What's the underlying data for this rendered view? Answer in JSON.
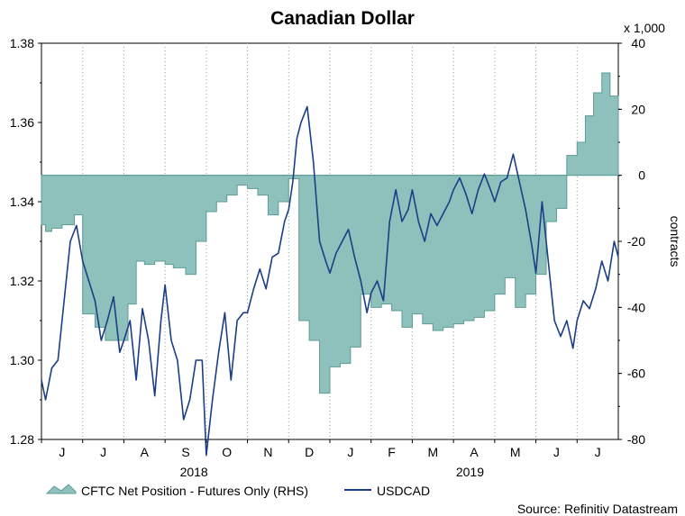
{
  "chart_data": {
    "type": "line",
    "title": "Canadian Dollar",
    "x_months": [
      "J",
      "J",
      "A",
      "S",
      "O",
      "N",
      "D",
      "J",
      "F",
      "M",
      "A",
      "M",
      "J",
      "J"
    ],
    "x_years": [
      "2018",
      "2019"
    ],
    "left_axis": {
      "ylim": [
        1.28,
        1.38
      ],
      "ticks": [
        "1.28",
        "1.30",
        "1.32",
        "1.34",
        "1.36",
        "1.38"
      ]
    },
    "right_axis": {
      "ylim": [
        -80,
        40
      ],
      "ticks": [
        "-80",
        "-60",
        "-40",
        "-20",
        "0",
        "20",
        "40"
      ],
      "unit_label": "x 1,000",
      "ylabel": "contracts"
    },
    "series": [
      {
        "name": "CFTC Net Position - Futures Only (RHS)",
        "type": "area",
        "axis": "right",
        "color": "#8fc1bc",
        "edge": "#5d9b95",
        "x": [
          0,
          0.1,
          0.25,
          0.5,
          0.8,
          1.0,
          1.3,
          1.55,
          1.75,
          2.1,
          2.3,
          2.5,
          2.75,
          3.0,
          3.2,
          3.5,
          3.75,
          4.0,
          4.25,
          4.5,
          4.75,
          5.0,
          5.25,
          5.5,
          5.75,
          6.0,
          6.25,
          6.5,
          6.75,
          7.0,
          7.25,
          7.5,
          7.75,
          8.0,
          8.25,
          8.5,
          8.75,
          9.0,
          9.25,
          9.5,
          9.75,
          10.0,
          10.25,
          10.5,
          10.75,
          11.0,
          11.25,
          11.5,
          11.75,
          12.0,
          12.25,
          12.5,
          12.75,
          13.0,
          13.2,
          13.4,
          13.6,
          13.8,
          14.0
        ],
        "values": [
          -15,
          -17,
          -16,
          -15,
          -12,
          -42,
          -46,
          -50,
          -50,
          -39,
          -26,
          -27,
          -26,
          -27,
          -28,
          -30,
          -20,
          -11,
          -8,
          -6,
          -3,
          -4,
          -6,
          -12,
          -8,
          -1,
          -44,
          -50,
          -66,
          -58,
          -57,
          -52,
          -36,
          -40,
          -39,
          -41,
          -46,
          -42,
          -45,
          -47,
          -46,
          -45,
          -44,
          -43,
          -41,
          -36,
          -31,
          -40,
          -36,
          -30,
          -14,
          -10,
          6,
          10,
          18,
          25,
          31,
          24,
          24
        ]
      },
      {
        "name": "USDCAD",
        "type": "line",
        "axis": "left",
        "color": "#1b3e87",
        "x": [
          0,
          0.1,
          0.25,
          0.4,
          0.55,
          0.7,
          0.85,
          1.0,
          1.15,
          1.3,
          1.45,
          1.6,
          1.75,
          1.9,
          2.0,
          2.15,
          2.3,
          2.45,
          2.6,
          2.75,
          2.9,
          3.0,
          3.15,
          3.3,
          3.45,
          3.6,
          3.75,
          3.9,
          4.0,
          4.15,
          4.3,
          4.45,
          4.6,
          4.75,
          4.9,
          5.0,
          5.15,
          5.3,
          5.45,
          5.6,
          5.75,
          5.9,
          6.0,
          6.1,
          6.2,
          6.3,
          6.45,
          6.6,
          6.75,
          6.9,
          7.0,
          7.15,
          7.3,
          7.45,
          7.6,
          7.75,
          7.9,
          8.0,
          8.15,
          8.3,
          8.45,
          8.6,
          8.75,
          8.9,
          9.0,
          9.15,
          9.3,
          9.45,
          9.6,
          9.75,
          9.9,
          10.0,
          10.15,
          10.3,
          10.45,
          10.6,
          10.75,
          10.9,
          11.0,
          11.15,
          11.3,
          11.45,
          11.6,
          11.75,
          11.9,
          12.0,
          12.15,
          12.3,
          12.45,
          12.6,
          12.75,
          12.9,
          13.0,
          13.15,
          13.3,
          13.45,
          13.6,
          13.75,
          13.9,
          14.0
        ],
        "values": [
          1.295,
          1.29,
          1.298,
          1.3,
          1.315,
          1.33,
          1.334,
          1.325,
          1.32,
          1.315,
          1.305,
          1.31,
          1.316,
          1.302,
          1.305,
          1.31,
          1.295,
          1.313,
          1.305,
          1.291,
          1.31,
          1.319,
          1.305,
          1.3,
          1.285,
          1.29,
          1.3,
          1.3,
          1.276,
          1.29,
          1.302,
          1.312,
          1.295,
          1.31,
          1.312,
          1.312,
          1.318,
          1.323,
          1.318,
          1.326,
          1.327,
          1.335,
          1.338,
          1.345,
          1.356,
          1.36,
          1.364,
          1.35,
          1.33,
          1.325,
          1.322,
          1.327,
          1.33,
          1.333,
          1.326,
          1.32,
          1.312,
          1.317,
          1.32,
          1.315,
          1.335,
          1.343,
          1.335,
          1.338,
          1.343,
          1.335,
          1.33,
          1.337,
          1.334,
          1.337,
          1.34,
          1.343,
          1.346,
          1.342,
          1.337,
          1.343,
          1.347,
          1.343,
          1.34,
          1.345,
          1.346,
          1.352,
          1.345,
          1.338,
          1.329,
          1.322,
          1.34,
          1.325,
          1.31,
          1.306,
          1.31,
          1.303,
          1.31,
          1.315,
          1.313,
          1.318,
          1.325,
          1.32,
          1.33,
          1.326
        ]
      }
    ],
    "legend_position": "bottom-left",
    "grid": "vertical dotted at month boundaries"
  },
  "source": "Source: Refinitiv Datastream"
}
